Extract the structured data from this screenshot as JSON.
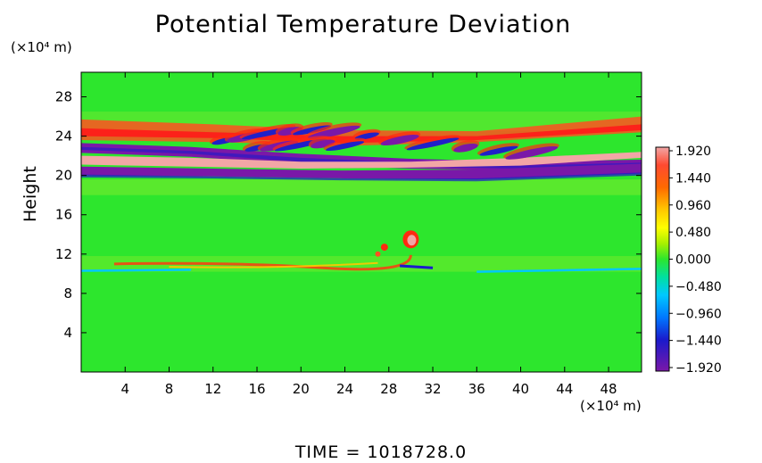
{
  "chart_data": {
    "type": "heatmap",
    "title": "Potential Temperature Deviation",
    "ylabel": "Height",
    "xlabel": "",
    "x_unit": "(×10⁴ m)",
    "y_unit": "(×10⁴ m)",
    "x_ticks": [
      "4",
      "8",
      "12",
      "16",
      "20",
      "24",
      "28",
      "32",
      "36",
      "40",
      "44",
      "48"
    ],
    "y_ticks": [
      "4",
      "8",
      "12",
      "16",
      "20",
      "24",
      "28"
    ],
    "xlim": [
      0,
      51
    ],
    "ylim": [
      0,
      30.5
    ],
    "colorbar": {
      "labels": [
        "1.920",
        "1.440",
        "0.960",
        "0.480",
        "0.000",
        "-0.480",
        "-0.960",
        "-1.440",
        "-1.920"
      ],
      "values": [
        1.92,
        1.44,
        0.96,
        0.48,
        0.0,
        -0.48,
        -0.96,
        -1.44,
        -1.92
      ]
    },
    "colors": {
      "background": "#2de62d",
      "positive": "#ff3a1a",
      "strong_positive": "#f2a6a6",
      "negative": "#1a1acc",
      "strong_negative": "#7a18a8"
    },
    "features": {
      "upper_wave_layer_height_range": [
        19.5,
        25.5
      ],
      "lower_warm_layer_height": 11,
      "plume_center": [
        30,
        13.5
      ]
    }
  },
  "footer": {
    "time_label": "TIME  =  1018728.0"
  }
}
